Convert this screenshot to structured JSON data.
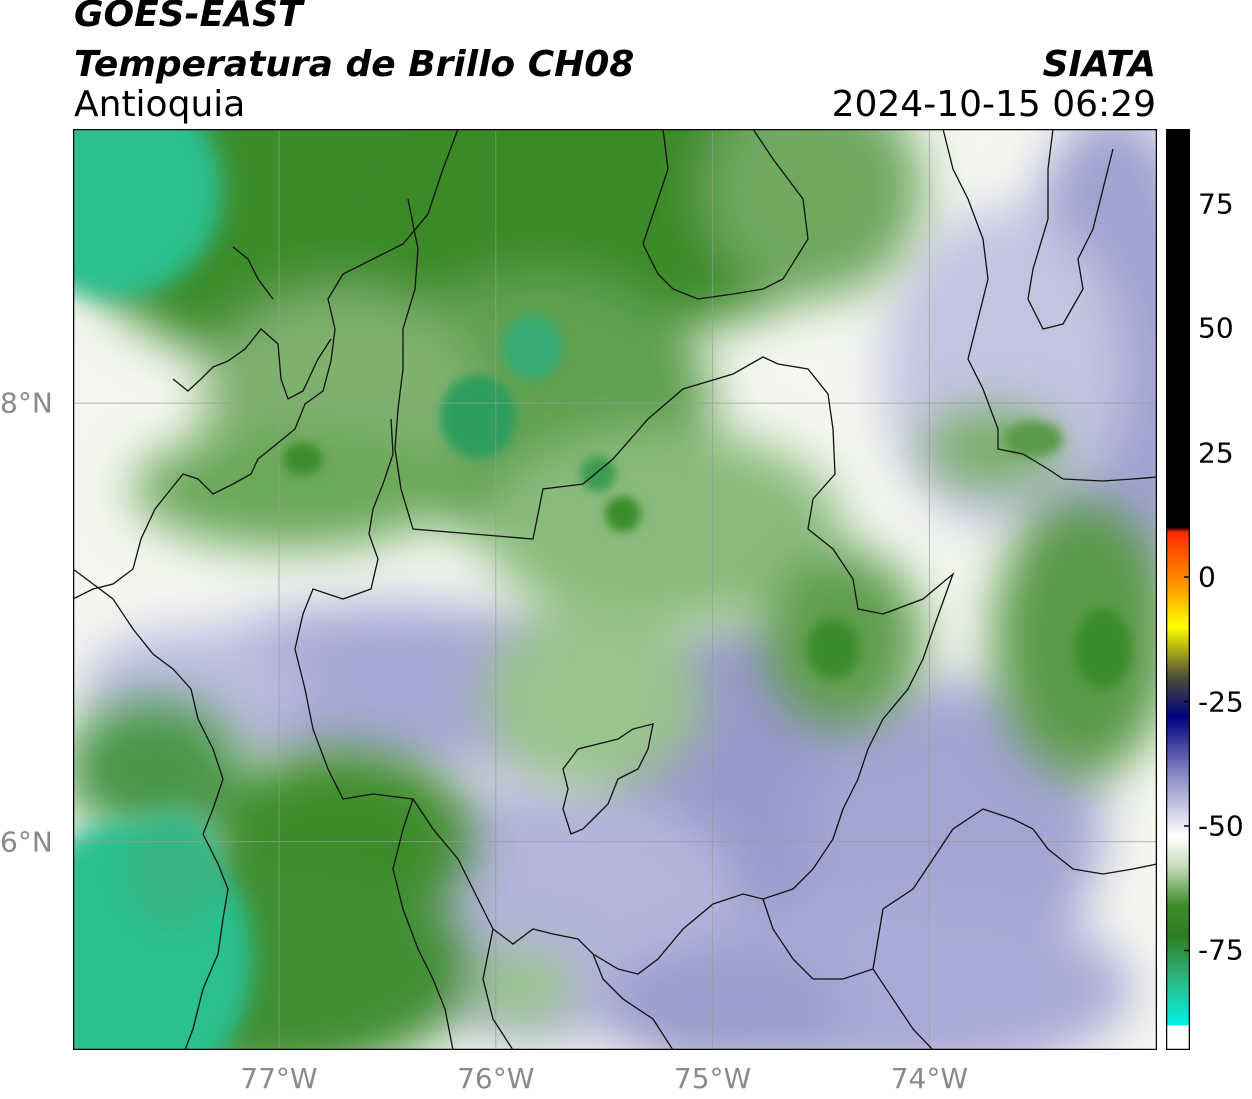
{
  "header": {
    "satellite": "GOES-EAST",
    "product": "Temperatura de Brillo CH08",
    "region": "Antioquia",
    "organization": "SIATA",
    "timestamp": "2024-10-15 06:29"
  },
  "map": {
    "lon_range": [
      -77.95,
      -72.95
    ],
    "lat_range": [
      5.05,
      9.25
    ],
    "lon_ticks": [
      {
        "value": -77,
        "label": "77°W"
      },
      {
        "value": -76,
        "label": "76°W"
      },
      {
        "value": -75,
        "label": "75°W"
      },
      {
        "value": -74,
        "label": "74°W"
      }
    ],
    "lat_ticks": [
      {
        "value": 8,
        "label": "8°N"
      },
      {
        "value": 6,
        "label": "6°N"
      }
    ],
    "grid": true
  },
  "colorbar": {
    "range": [
      -95,
      90
    ],
    "ticks": [
      {
        "value": 75,
        "label": "75"
      },
      {
        "value": 50,
        "label": "50"
      },
      {
        "value": 25,
        "label": "25"
      },
      {
        "value": 0,
        "label": "0"
      },
      {
        "value": -25,
        "label": "-25"
      },
      {
        "value": -50,
        "label": "-50"
      },
      {
        "value": -75,
        "label": "-75"
      }
    ],
    "colors": {
      "black": "#000000",
      "red": "#ff2a00",
      "orange": "#ff9900",
      "yellow": "#ffff00",
      "dark_olive": "#4f4f36",
      "navy": "#000080",
      "lavender": "#8c8cc6",
      "white": "#ffffff",
      "light_green": "#c8dcbc",
      "green": "#3c8c2a",
      "dark_green": "#2f7d22",
      "teal": "#2bbf8f",
      "cyan": "#00f0e6"
    }
  }
}
